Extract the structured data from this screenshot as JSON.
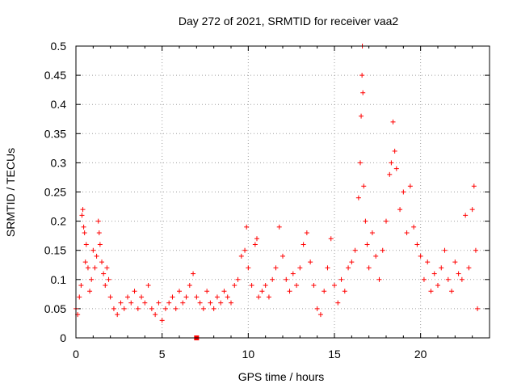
{
  "chart_data": {
    "type": "scatter",
    "title": "Day 272 of 2021, SRMTID for receiver vaa2",
    "xlabel": "GPS time / hours",
    "ylabel": "SRMTID / TECUs",
    "xlim": [
      0,
      24
    ],
    "ylim": [
      0,
      0.5
    ],
    "xticks": [
      0,
      5,
      10,
      15,
      20
    ],
    "yticks": [
      0,
      0.05,
      0.1,
      0.15,
      0.2,
      0.25,
      0.3,
      0.35,
      0.4,
      0.45,
      0.5
    ],
    "grid": true,
    "marker": "+",
    "color": "#ff0000",
    "series": [
      {
        "name": "SRMTID",
        "points": [
          [
            0.0,
            0.05
          ],
          [
            0.1,
            0.04
          ],
          [
            0.2,
            0.07
          ],
          [
            0.3,
            0.09
          ],
          [
            0.35,
            0.21
          ],
          [
            0.4,
            0.22
          ],
          [
            0.45,
            0.19
          ],
          [
            0.5,
            0.18
          ],
          [
            0.55,
            0.13
          ],
          [
            0.6,
            0.16
          ],
          [
            0.7,
            0.12
          ],
          [
            0.8,
            0.08
          ],
          [
            0.9,
            0.1
          ],
          [
            1.0,
            0.15
          ],
          [
            1.1,
            0.12
          ],
          [
            1.2,
            0.14
          ],
          [
            1.3,
            0.2
          ],
          [
            1.35,
            0.18
          ],
          [
            1.4,
            0.16
          ],
          [
            1.5,
            0.13
          ],
          [
            1.6,
            0.11
          ],
          [
            1.7,
            0.09
          ],
          [
            1.8,
            0.12
          ],
          [
            1.9,
            0.1
          ],
          [
            2.0,
            0.07
          ],
          [
            2.2,
            0.05
          ],
          [
            2.4,
            0.04
          ],
          [
            2.6,
            0.06
          ],
          [
            2.8,
            0.05
          ],
          [
            3.0,
            0.07
          ],
          [
            3.2,
            0.06
          ],
          [
            3.4,
            0.08
          ],
          [
            3.6,
            0.05
          ],
          [
            3.8,
            0.07
          ],
          [
            4.0,
            0.06
          ],
          [
            4.2,
            0.09
          ],
          [
            4.4,
            0.05
          ],
          [
            4.6,
            0.04
          ],
          [
            4.8,
            0.06
          ],
          [
            5.0,
            0.03
          ],
          [
            5.2,
            0.05
          ],
          [
            5.4,
            0.06
          ],
          [
            5.6,
            0.07
          ],
          [
            5.8,
            0.05
          ],
          [
            6.0,
            0.08
          ],
          [
            6.2,
            0.06
          ],
          [
            6.4,
            0.07
          ],
          [
            6.6,
            0.09
          ],
          [
            6.8,
            0.11
          ],
          [
            7.0,
            0.07
          ],
          [
            7.2,
            0.06
          ],
          [
            7.4,
            0.05
          ],
          [
            7.6,
            0.08
          ],
          [
            7.8,
            0.06
          ],
          [
            8.0,
            0.05
          ],
          [
            8.2,
            0.07
          ],
          [
            8.4,
            0.06
          ],
          [
            8.6,
            0.08
          ],
          [
            8.8,
            0.07
          ],
          [
            9.0,
            0.06
          ],
          [
            9.2,
            0.09
          ],
          [
            9.4,
            0.1
          ],
          [
            9.6,
            0.14
          ],
          [
            9.8,
            0.15
          ],
          [
            9.9,
            0.19
          ],
          [
            10.0,
            0.12
          ],
          [
            10.2,
            0.09
          ],
          [
            10.4,
            0.16
          ],
          [
            10.5,
            0.17
          ],
          [
            10.6,
            0.07
          ],
          [
            10.8,
            0.08
          ],
          [
            11.0,
            0.09
          ],
          [
            11.2,
            0.07
          ],
          [
            11.4,
            0.1
          ],
          [
            11.6,
            0.12
          ],
          [
            11.8,
            0.19
          ],
          [
            12.0,
            0.14
          ],
          [
            12.2,
            0.1
          ],
          [
            12.4,
            0.08
          ],
          [
            12.6,
            0.11
          ],
          [
            12.8,
            0.09
          ],
          [
            13.0,
            0.12
          ],
          [
            13.2,
            0.16
          ],
          [
            13.4,
            0.18
          ],
          [
            13.6,
            0.13
          ],
          [
            13.8,
            0.09
          ],
          [
            14.0,
            0.05
          ],
          [
            14.2,
            0.04
          ],
          [
            14.4,
            0.08
          ],
          [
            14.6,
            0.12
          ],
          [
            14.8,
            0.17
          ],
          [
            15.0,
            0.09
          ],
          [
            15.2,
            0.06
          ],
          [
            15.4,
            0.1
          ],
          [
            15.6,
            0.08
          ],
          [
            15.8,
            0.12
          ],
          [
            16.0,
            0.13
          ],
          [
            16.2,
            0.15
          ],
          [
            16.4,
            0.24
          ],
          [
            16.5,
            0.3
          ],
          [
            16.55,
            0.38
          ],
          [
            16.6,
            0.45
          ],
          [
            16.62,
            0.5
          ],
          [
            16.65,
            0.42
          ],
          [
            16.7,
            0.26
          ],
          [
            16.8,
            0.2
          ],
          [
            16.9,
            0.16
          ],
          [
            17.0,
            0.12
          ],
          [
            17.2,
            0.18
          ],
          [
            17.4,
            0.14
          ],
          [
            17.6,
            0.1
          ],
          [
            17.8,
            0.15
          ],
          [
            18.0,
            0.2
          ],
          [
            18.2,
            0.28
          ],
          [
            18.3,
            0.3
          ],
          [
            18.4,
            0.37
          ],
          [
            18.5,
            0.32
          ],
          [
            18.6,
            0.29
          ],
          [
            18.8,
            0.22
          ],
          [
            19.0,
            0.25
          ],
          [
            19.2,
            0.18
          ],
          [
            19.4,
            0.26
          ],
          [
            19.6,
            0.19
          ],
          [
            19.8,
            0.16
          ],
          [
            20.0,
            0.14
          ],
          [
            20.2,
            0.1
          ],
          [
            20.4,
            0.13
          ],
          [
            20.6,
            0.08
          ],
          [
            20.8,
            0.11
          ],
          [
            21.0,
            0.09
          ],
          [
            21.2,
            0.12
          ],
          [
            21.4,
            0.15
          ],
          [
            21.6,
            0.1
          ],
          [
            21.8,
            0.08
          ],
          [
            22.0,
            0.13
          ],
          [
            22.2,
            0.11
          ],
          [
            22.4,
            0.1
          ],
          [
            22.6,
            0.21
          ],
          [
            22.8,
            0.12
          ],
          [
            23.0,
            0.22
          ],
          [
            23.1,
            0.26
          ],
          [
            23.2,
            0.15
          ],
          [
            23.3,
            0.05
          ]
        ]
      }
    ],
    "special_point": {
      "x": 7.0,
      "y": 0.0,
      "marker": "square"
    }
  }
}
